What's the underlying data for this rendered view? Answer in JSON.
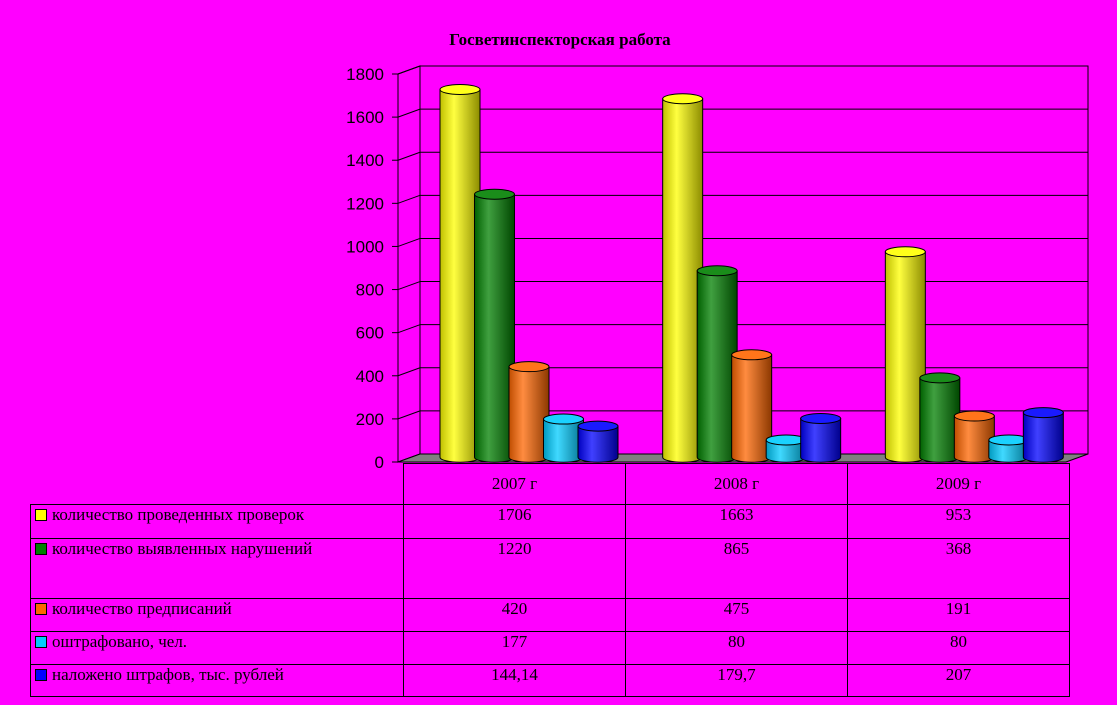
{
  "chart_data": {
    "type": "bar",
    "title": "Госветинспекторская работа",
    "categories": [
      "2007 г",
      "2008 г",
      "2009 г"
    ],
    "yticks": [
      "0",
      "200",
      "400",
      "600",
      "800",
      "1000",
      "1200",
      "1400",
      "1600",
      "1800"
    ],
    "ylim": [
      0,
      1800
    ],
    "grid": true,
    "legend": "table-below",
    "series": [
      {
        "name": "количество проведенных проверок",
        "color": "#ffff00",
        "values": [
          1706,
          1663,
          953
        ],
        "labels": [
          "1706",
          "1663",
          "953"
        ]
      },
      {
        "name": "количество выявленных нарушений",
        "color": "#008000",
        "values": [
          1220,
          865,
          368
        ],
        "labels": [
          "1220",
          "865",
          "368"
        ]
      },
      {
        "name": "количество предписаний",
        "color": "#ff6600",
        "values": [
          420,
          475,
          191
        ],
        "labels": [
          "420",
          "475",
          "191"
        ]
      },
      {
        "name": "оштрафовано, чел.",
        "color": "#00ccff",
        "values": [
          177,
          80,
          80
        ],
        "labels": [
          "177",
          "80",
          "80"
        ]
      },
      {
        "name": "наложено штрафов, тыс. рублей",
        "color": "#0000ff",
        "values": [
          144.14,
          179.7,
          207
        ],
        "labels": [
          "144,14",
          "179,7",
          "207"
        ]
      }
    ]
  }
}
